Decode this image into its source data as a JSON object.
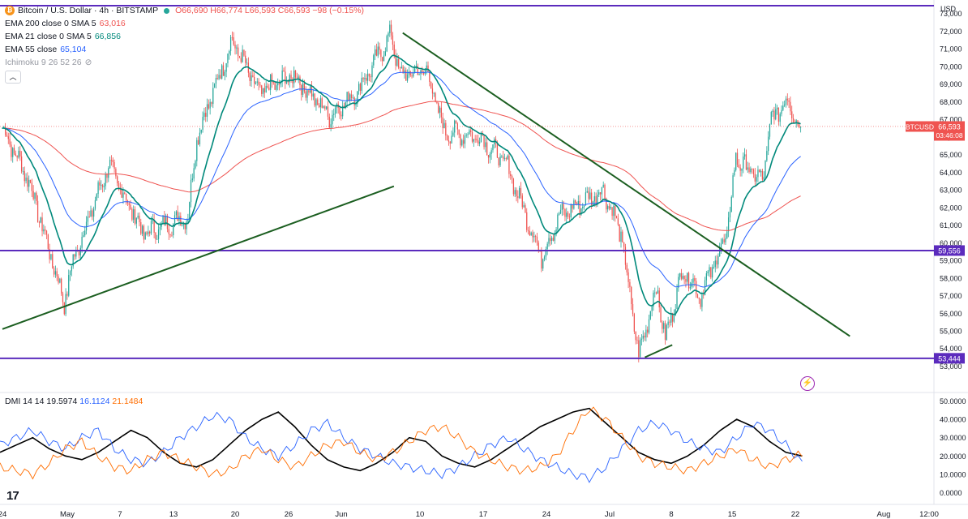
{
  "header": {
    "symbol_title": "Bitcoin / U.S. Dollar · 4h · BITSTAMP",
    "ohlc": "O66,690 H66,774 L66,593 C66,593 −98 (−0.15%)",
    "ema200": {
      "label": "EMA 200 close 0 SMA 5",
      "value": "63,016"
    },
    "ema21": {
      "label": "EMA 21 close 0 SMA 5",
      "value": "66,856"
    },
    "ema55": {
      "label": "EMA 55 close",
      "value": "65,104"
    },
    "ichimoku": "Ichimoku 9 26 52 26"
  },
  "currency": "USD",
  "price_tag": {
    "symbol": "BTCUSD",
    "price": "66,593",
    "countdown": "03:46:08"
  },
  "level_labels": {
    "top": "",
    "mid": "59,556",
    "low": "53,444"
  },
  "dmi": {
    "label": "DMI 14 14",
    "v1": "19.5974",
    "v2": "16.1124",
    "v3": "21.1484"
  },
  "colors": {
    "ema200": "#ef5350",
    "ema21": "#00897b",
    "ema55": "#2962ff",
    "level": "#5b2bbd",
    "trend": "#1b5e20",
    "up": "#26a69a",
    "down": "#ef5350",
    "adx": "#000000",
    "plus_di": "#2962ff",
    "minus_di": "#ff6d00"
  },
  "chart_data": [
    {
      "type": "candlestick",
      "title": "Bitcoin / U.S. Dollar · 4h · BITSTAMP",
      "y_ticks": [
        "73,000",
        "72,000",
        "71,000",
        "70,000",
        "69,000",
        "68,000",
        "67,000",
        "66,000",
        "65,000",
        "64,000",
        "63,000",
        "62,000",
        "61,000",
        "60,000",
        "59,000",
        "58,000",
        "57,000",
        "56,000",
        "55,000",
        "54,000",
        "53,000"
      ],
      "ylim": [
        52700,
        73400
      ],
      "x_ticks": [
        "24",
        "May",
        "7",
        "13",
        "20",
        "26",
        "Jun",
        "10",
        "17",
        "24",
        "Jul",
        "8",
        "15",
        "22",
        "Aug",
        "12:00"
      ],
      "key_points": [
        {
          "date": "Apr 24",
          "price": 66500
        },
        {
          "date": "Apr 27",
          "price": 63500
        },
        {
          "date": "May 1",
          "price": 56600
        },
        {
          "date": "May 2",
          "price": 59000
        },
        {
          "date": "May 6",
          "price": 64400
        },
        {
          "date": "May 10",
          "price": 60500
        },
        {
          "date": "May 15",
          "price": 61500
        },
        {
          "date": "May 16",
          "price": 66000
        },
        {
          "date": "May 20",
          "price": 71500
        },
        {
          "date": "May 23",
          "price": 68500
        },
        {
          "date": "May 27",
          "price": 69500
        },
        {
          "date": "May 31",
          "price": 67200
        },
        {
          "date": "Jun 3",
          "price": 68500
        },
        {
          "date": "Jun 7",
          "price": 71800
        },
        {
          "date": "Jun 8",
          "price": 69500
        },
        {
          "date": "Jun 11",
          "price": 69800
        },
        {
          "date": "Jun 13",
          "price": 66300
        },
        {
          "date": "Jun 17",
          "price": 66000
        },
        {
          "date": "Jun 20",
          "price": 64500
        },
        {
          "date": "Jun 24",
          "price": 59200
        },
        {
          "date": "Jun 26",
          "price": 61500
        },
        {
          "date": "Jul 1",
          "price": 63000
        },
        {
          "date": "Jul 3",
          "price": 60500
        },
        {
          "date": "Jul 5",
          "price": 53600
        },
        {
          "date": "Jul 7",
          "price": 57500
        },
        {
          "date": "Jul 8",
          "price": 54500
        },
        {
          "date": "Jul 10",
          "price": 58500
        },
        {
          "date": "Jul 12",
          "price": 57000
        },
        {
          "date": "Jul 15",
          "price": 60500
        },
        {
          "date": "Jul 16",
          "price": 64800
        },
        {
          "date": "Jul 19",
          "price": 63500
        },
        {
          "date": "Jul 20",
          "price": 67000
        },
        {
          "date": "Jul 22",
          "price": 68200
        },
        {
          "date": "Jul 23",
          "price": 66593
        }
      ],
      "levels": [
        73444,
        59556,
        53444
      ],
      "last_price": 66593
    },
    {
      "type": "line",
      "title": "DMI 14 14",
      "y_ticks": [
        "50.0000",
        "40.0000",
        "30.0000",
        "20.0000",
        "10.0000",
        "0.0000"
      ],
      "ylim": [
        -2,
        52
      ],
      "series": [
        {
          "name": "19.5974",
          "values": [
            22,
            26,
            30,
            24,
            20,
            18,
            22,
            28,
            34,
            30,
            22,
            16,
            14,
            18,
            26,
            34,
            40,
            44,
            36,
            26,
            18,
            14,
            12,
            16,
            22,
            30,
            28,
            20,
            16,
            14,
            18,
            24,
            30,
            36,
            40,
            44,
            46,
            38,
            30,
            22,
            18,
            16,
            20,
            26,
            34,
            40,
            36,
            28,
            22,
            20
          ]
        },
        {
          "name": "16.1124",
          "values": [
            26,
            30,
            34,
            28,
            24,
            30,
            34,
            24,
            18,
            16,
            22,
            30,
            36,
            42,
            40,
            30,
            24,
            20,
            26,
            34,
            38,
            30,
            24,
            20,
            16,
            14,
            12,
            10,
            14,
            20,
            26,
            30,
            24,
            18,
            14,
            10,
            8,
            14,
            24,
            34,
            38,
            34,
            28,
            24,
            22,
            30,
            38,
            34,
            26,
            16
          ]
        },
        {
          "name": "21.1484",
          "values": [
            14,
            12,
            10,
            16,
            24,
            28,
            20,
            14,
            12,
            18,
            22,
            18,
            14,
            10,
            12,
            20,
            24,
            18,
            14,
            20,
            26,
            28,
            22,
            18,
            22,
            28,
            34,
            36,
            30,
            22,
            18,
            14,
            12,
            14,
            20,
            34,
            46,
            40,
            30,
            20,
            16,
            14,
            12,
            16,
            20,
            24,
            18,
            14,
            18,
            21
          ]
        }
      ]
    }
  ]
}
